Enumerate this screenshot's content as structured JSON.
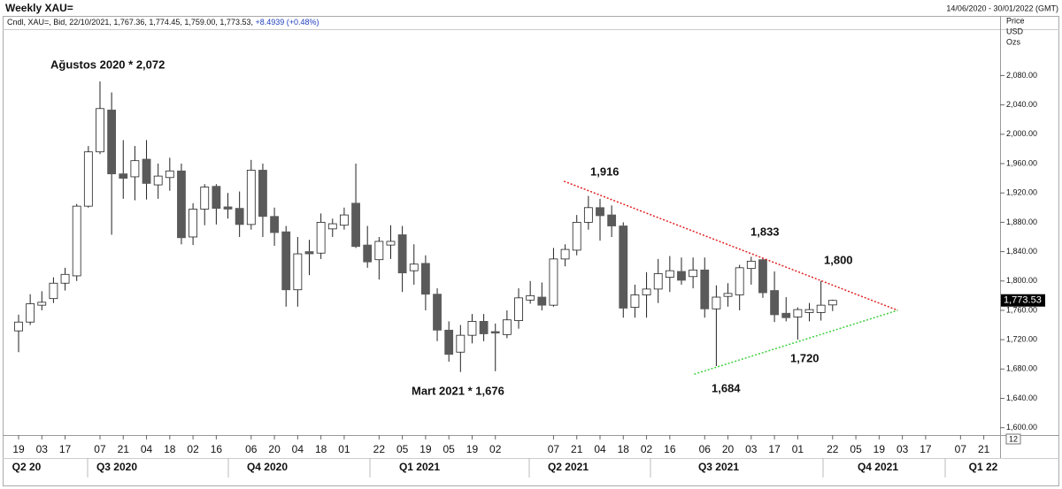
{
  "chart_data": {
    "type": "candlestick",
    "title": "Weekly XAU=",
    "date_range": "14/06/2020 - 30/01/2022 (GMT)",
    "legend_line": "Cndl, XAU=, Bid, 22/10/2021, 1,767.36, 1,774.45, 1,759.00, 1,773.53, ",
    "change": "+8.4939 (+0.48%)",
    "axis_unit": [
      "Price",
      "USD",
      "Ozs"
    ],
    "price_tag": "1,773.53",
    "corner_label": "12",
    "categories": [
      "19",
      null,
      "03",
      null,
      "17",
      null,
      null,
      "07",
      null,
      "21",
      null,
      "04",
      null,
      "18",
      null,
      "02",
      null,
      "16",
      null,
      null,
      "06",
      null,
      "20",
      null,
      "04",
      null,
      "18",
      null,
      "01",
      null,
      null,
      "22",
      null,
      "05",
      null,
      "19",
      null,
      "05",
      null,
      "19",
      null,
      "02",
      null,
      null,
      null,
      null,
      "07",
      null,
      "21",
      null,
      "04",
      null,
      "18",
      null,
      "02",
      null,
      "16",
      null,
      null,
      "06",
      null,
      "20",
      null,
      "03",
      null,
      "17",
      null,
      "01",
      null,
      null,
      "22",
      null,
      "05",
      null,
      "19",
      null,
      "03",
      null,
      "17",
      null,
      null,
      "07",
      null,
      "21"
    ],
    "quarters": [
      "Q2 20",
      "Q3 2020",
      "Q4 2020",
      "Q1 2021",
      "Q2 2021",
      "Q3 2021",
      "Q4 2021",
      "Q1 22"
    ],
    "series": {
      "up_color": "#ffffff",
      "down_color": "#5a5a5a",
      "edge_color": "#222222",
      "open": [
        1732,
        1744,
        1767,
        1776,
        1797,
        1807,
        1902,
        1976,
        2033,
        1946,
        1942,
        1966,
        1931,
        1941,
        1950,
        1860,
        1898,
        1929,
        1901,
        1899,
        1877,
        1951,
        1888,
        1867,
        1788,
        1840,
        1838,
        1871,
        1876,
        1906,
        1849,
        1829,
        1849,
        1863,
        1814,
        1824,
        1782,
        1733,
        1703,
        1726,
        1745,
        1731,
        1727,
        1746,
        1774,
        1778,
        1767,
        1830,
        1842,
        1880,
        1900,
        1890,
        1875,
        1764,
        1781,
        1789,
        1805,
        1813,
        1806,
        1815,
        1762,
        1779,
        1781,
        1817,
        1829,
        1787,
        1756,
        1751,
        1757,
        1757,
        1767.36,
        null,
        null,
        null,
        null,
        null,
        null,
        null,
        null,
        null,
        null,
        null,
        null,
        null
      ],
      "high": [
        1754,
        1782,
        1786,
        1805,
        1818,
        1905,
        1984,
        2072,
        2057,
        1992,
        1984,
        1992,
        1960,
        1968,
        1960,
        1906,
        1932,
        1932,
        1920,
        1922,
        1965,
        1960,
        1900,
        1875,
        1860,
        1856,
        1892,
        1885,
        1900,
        1960,
        1875,
        1860,
        1876,
        1875,
        1850,
        1835,
        1790,
        1745,
        1740,
        1755,
        1755,
        1742,
        1760,
        1790,
        1800,
        1798,
        1845,
        1850,
        1890,
        1916,
        1912,
        1903,
        1880,
        1795,
        1812,
        1830,
        1834,
        1832,
        1832,
        1832,
        1794,
        1797,
        1822,
        1833,
        1831,
        1813,
        1778,
        1764,
        1770,
        1800,
        1774.45,
        null,
        null,
        null,
        null,
        null,
        null,
        null,
        null,
        null,
        null,
        null,
        null,
        null
      ],
      "low": [
        1703,
        1740,
        1760,
        1770,
        1787,
        1800,
        1900,
        1973,
        1863,
        1912,
        1910,
        1911,
        1912,
        1923,
        1850,
        1849,
        1876,
        1877,
        1885,
        1860,
        1870,
        1860,
        1848,
        1765,
        1765,
        1808,
        1830,
        1860,
        1870,
        1845,
        1818,
        1802,
        1830,
        1785,
        1795,
        1760,
        1718,
        1690,
        1676,
        1715,
        1718,
        1677,
        1722,
        1735,
        1769,
        1760,
        1765,
        1820,
        1835,
        1870,
        1855,
        1860,
        1750,
        1750,
        1750,
        1770,
        1785,
        1795,
        1790,
        1750,
        1684,
        1765,
        1760,
        1795,
        1777,
        1744,
        1745,
        1720,
        1745,
        1746,
        1759.0,
        null,
        null,
        null,
        null,
        null,
        null,
        null,
        null,
        null,
        null,
        null,
        null,
        null
      ],
      "close": [
        1744,
        1769,
        1771,
        1797,
        1809,
        1902,
        1976,
        2035,
        1946,
        1940,
        1964,
        1933,
        1943,
        1950,
        1859,
        1898,
        1928,
        1899,
        1898,
        1877,
        1951,
        1888,
        1866,
        1788,
        1837,
        1837,
        1880,
        1878,
        1890,
        1847,
        1826,
        1854,
        1854,
        1811,
        1823,
        1782,
        1733,
        1700,
        1726,
        1745,
        1728,
        1729,
        1747,
        1777,
        1780,
        1767,
        1830,
        1843,
        1880,
        1900,
        1889,
        1875,
        1763,
        1781,
        1789,
        1810,
        1814,
        1801,
        1815,
        1762,
        1778,
        1783,
        1818,
        1827,
        1784,
        1754,
        1750,
        1761,
        1761,
        1767,
        1773.53,
        null,
        null,
        null,
        null,
        null,
        null,
        null,
        null,
        null,
        null,
        null,
        null,
        null
      ]
    },
    "trendlines": [
      {
        "color": "#e02020",
        "x": [
          46.9,
          75.6
        ],
        "y": [
          1936,
          1760
        ]
      },
      {
        "color": "#40d040",
        "x": [
          58.1,
          75.6
        ],
        "y": [
          1673,
          1760
        ]
      }
    ],
    "annotations": [
      {
        "text": "Ağustos 2020 * 2,072"
      },
      {
        "text": "1,916"
      },
      {
        "text": "1,833"
      },
      {
        "text": "1,800"
      },
      {
        "text": "1,720"
      },
      {
        "text": "1,684"
      },
      {
        "text": "Mart 2021 * 1,676"
      }
    ],
    "ylim": [
      1590,
      2142
    ],
    "yticks": [
      {
        "value": 1600,
        "label": "1,600.00"
      },
      {
        "value": 1640,
        "label": "1,640.00"
      },
      {
        "value": 1680,
        "label": "1,680.00"
      },
      {
        "value": 1720,
        "label": "1,720.00"
      },
      {
        "value": 1760,
        "label": "1,760.00"
      },
      {
        "value": 1800,
        "label": "1,800.00"
      },
      {
        "value": 1840,
        "label": "1,840.00"
      },
      {
        "value": 1880,
        "label": "1,880.00"
      },
      {
        "value": 1920,
        "label": "1,920.00"
      },
      {
        "value": 1960,
        "label": "1,960.00"
      },
      {
        "value": 2000,
        "label": "2,000.00"
      },
      {
        "value": 2040,
        "label": "2,040.00"
      },
      {
        "value": 2080,
        "label": "2,080.00"
      }
    ],
    "grid": false
  }
}
